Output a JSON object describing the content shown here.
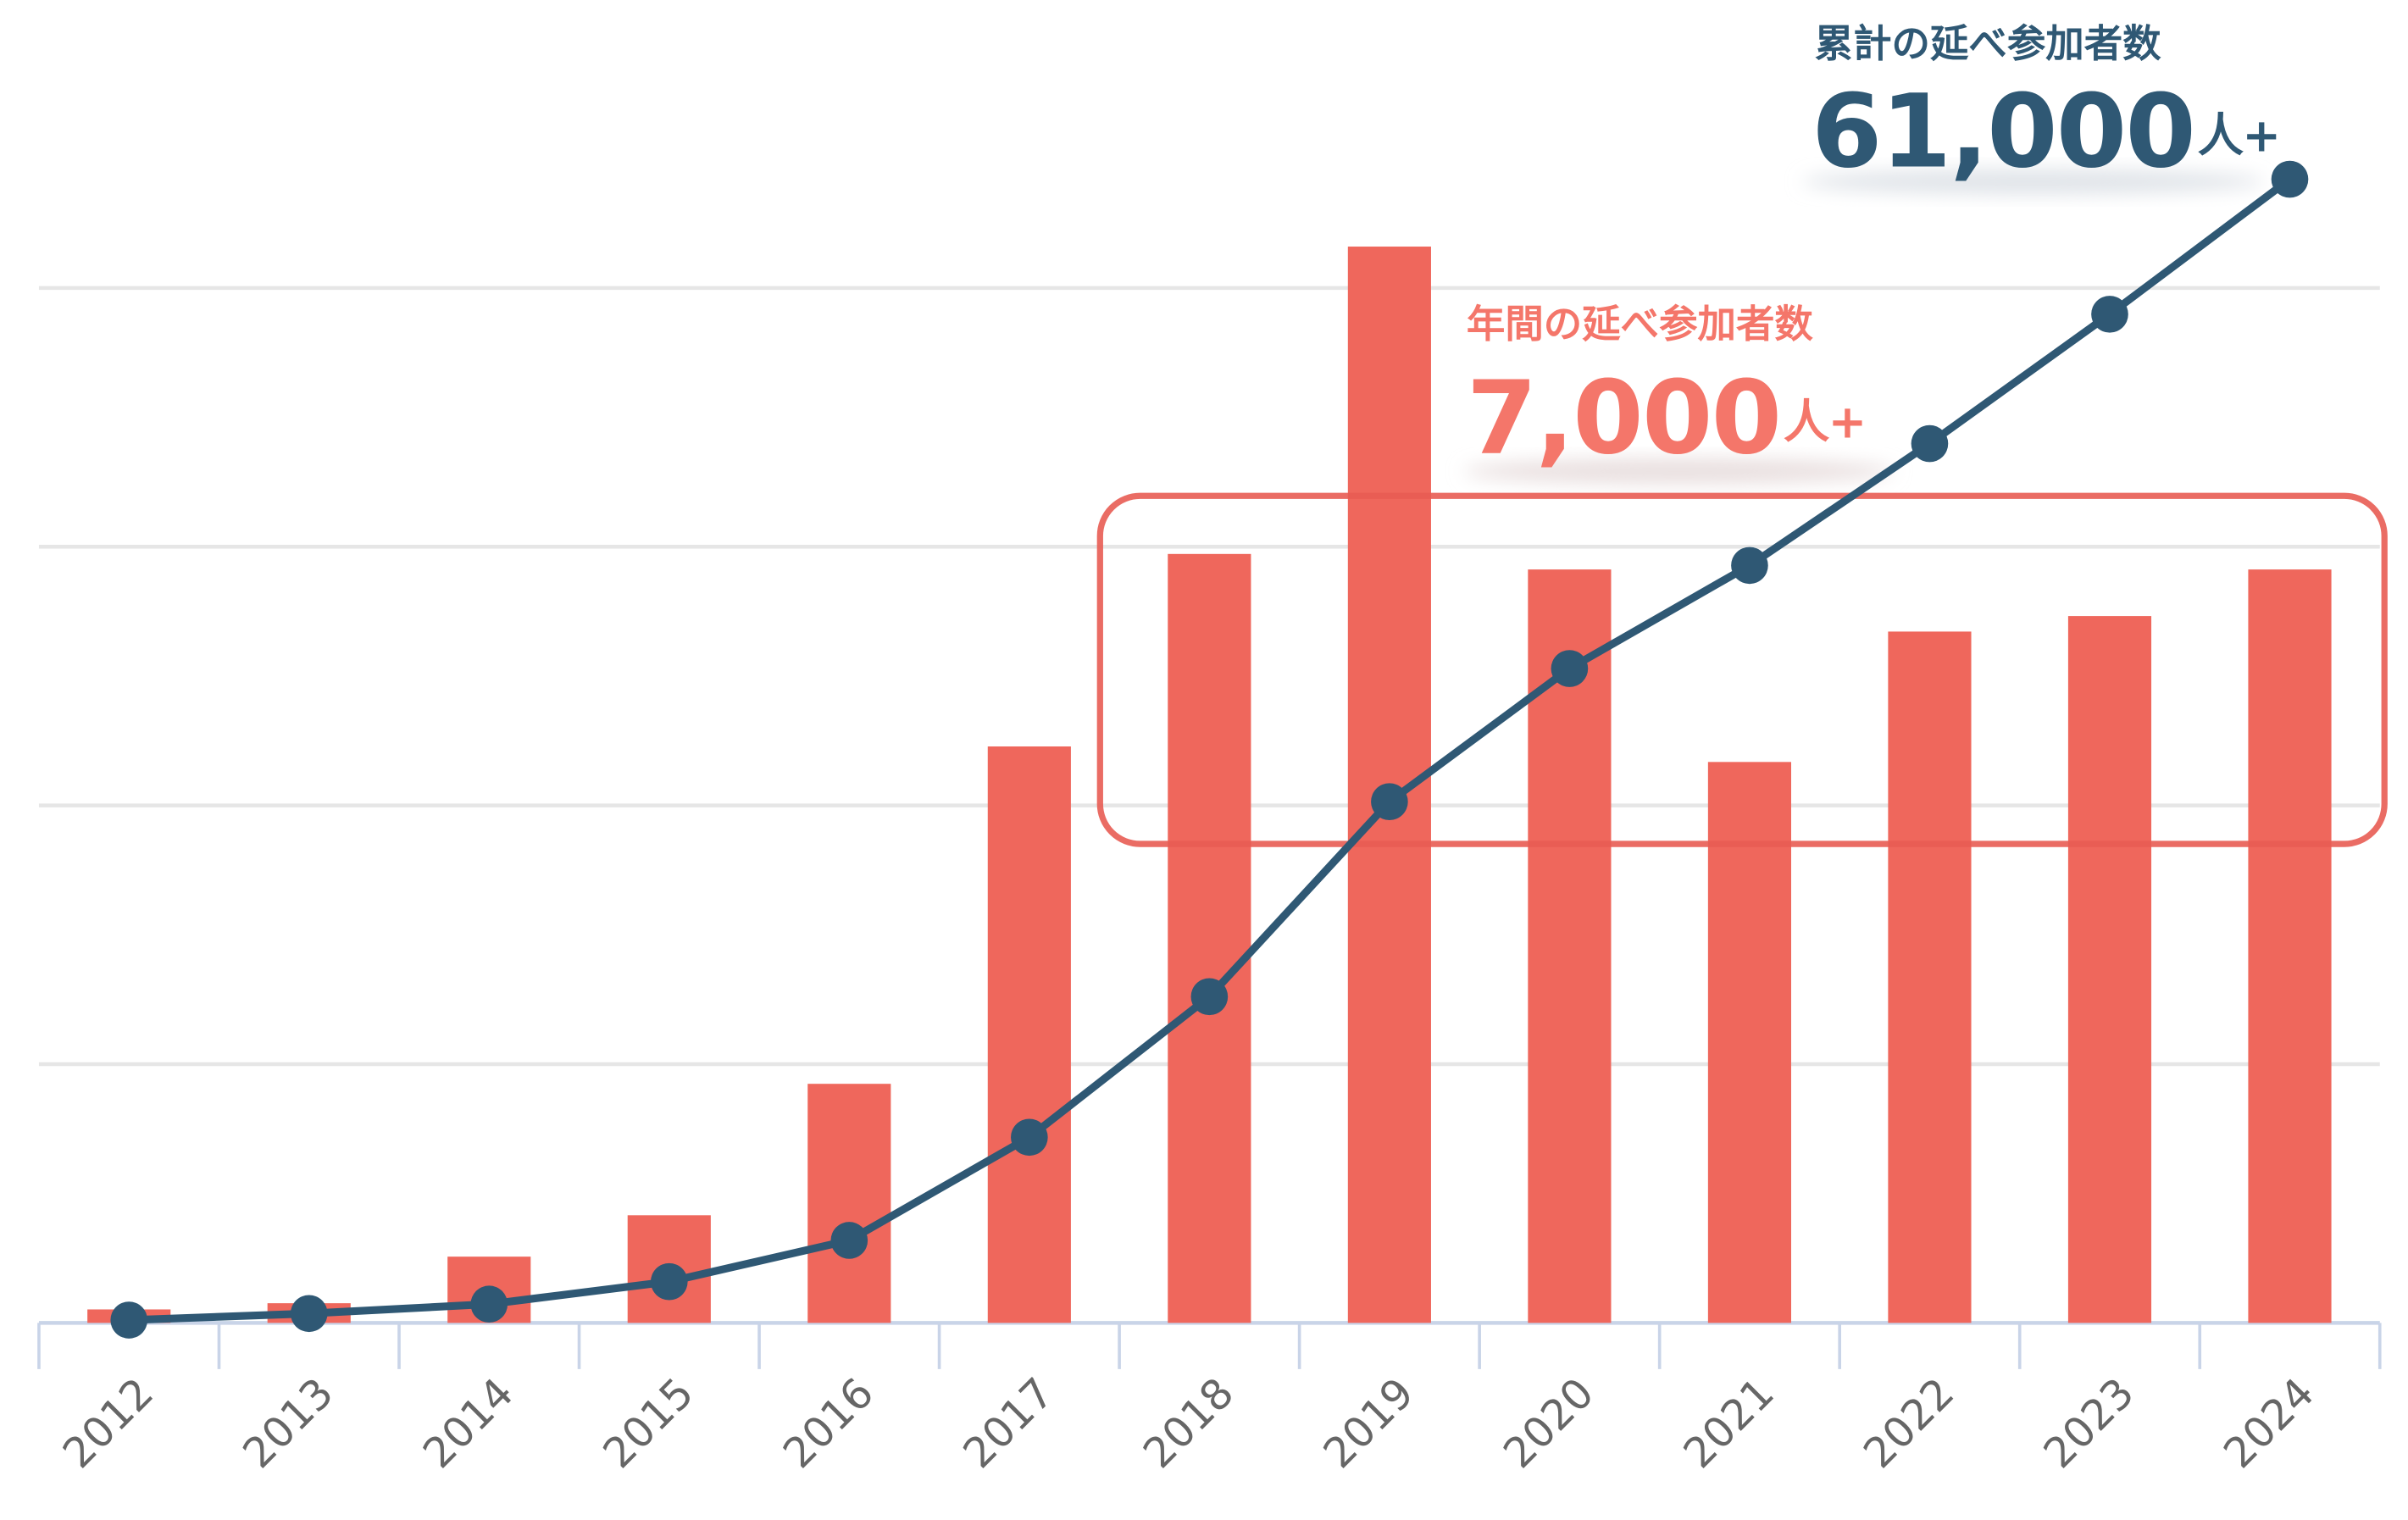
{
  "chart_data": {
    "type": "bar-line",
    "categories": [
      "2012",
      "2013",
      "2014",
      "2015",
      "2016",
      "2017",
      "2018",
      "2019",
      "2020",
      "2021",
      "2022",
      "2023",
      "2024"
    ],
    "series": [
      {
        "type": "bar",
        "color": "#ef675c",
        "values": [
          130,
          190,
          640,
          1040,
          2310,
          5570,
          7430,
          10400,
          7280,
          5420,
          6680,
          6830,
          7280
        ]
      },
      {
        "type": "line",
        "axis": "y2",
        "color": "#2f5874",
        "values": [
          150,
          500,
          1000,
          2200,
          4400,
          9900,
          17400,
          27800,
          34900,
          40400,
          46900,
          53800,
          61000
        ]
      }
    ],
    "ylim": [
      0,
      12500
    ],
    "yticks": [
      0,
      2500,
      5000,
      7500,
      10000
    ],
    "y2lim": [
      0,
      69000
    ],
    "grid": true,
    "annotations": [
      {
        "label": "累計の延べ参加者数",
        "value": "61,000",
        "unit": "人+",
        "color": "#2f5874"
      },
      {
        "label": "年間の延べ参加者数",
        "value": "7,000",
        "unit": "人+",
        "color": "#f4766a"
      }
    ]
  }
}
